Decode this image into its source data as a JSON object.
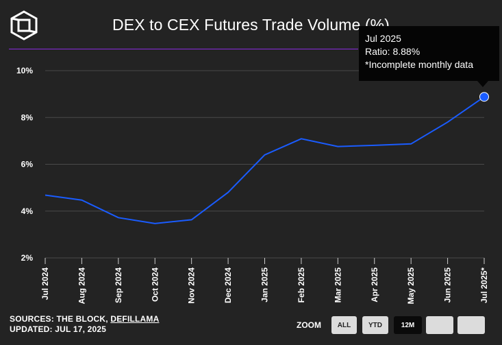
{
  "header": {
    "title": "DEX to CEX Futures Trade Volume (%)"
  },
  "tooltip": {
    "date": "Jul 2025",
    "ratio": "Ratio: 8.88%",
    "note": "*Incomplete monthly data"
  },
  "footer": {
    "sources_prefix": "SOURCES: THE BLOCK, ",
    "sources_link": "DEFILLAMA",
    "updated": "UPDATED: JUL 17, 2025"
  },
  "zoom": {
    "label": "ZOOM",
    "buttons": [
      "ALL",
      "YTD",
      "12M",
      "",
      ""
    ],
    "active": "12M"
  },
  "colors": {
    "line": "#1a5cff",
    "grid": "#4a4a4a",
    "accent_rule": "#8a2be2"
  },
  "chart_data": {
    "type": "line",
    "title": "DEX to CEX Futures Trade Volume (%)",
    "categories": [
      "Jul 2024",
      "Aug 2024",
      "Sep 2024",
      "Oct 2024",
      "Nov 2024",
      "Dec 2024",
      "Jan 2025",
      "Feb 2025",
      "Mar 2025",
      "Apr 2025",
      "May 2025",
      "Jun 2025",
      "Jul 2025*"
    ],
    "series": [
      {
        "values": [
          4.68,
          4.47,
          3.72,
          3.47,
          3.63,
          4.8,
          6.4,
          7.09,
          6.76,
          6.81,
          6.87,
          7.8,
          8.88
        ]
      }
    ],
    "yticks": [
      "2%",
      "4%",
      "6%",
      "8%",
      "10%"
    ],
    "ylim": [
      2,
      10
    ],
    "grid": true,
    "highlight_index": 12
  }
}
